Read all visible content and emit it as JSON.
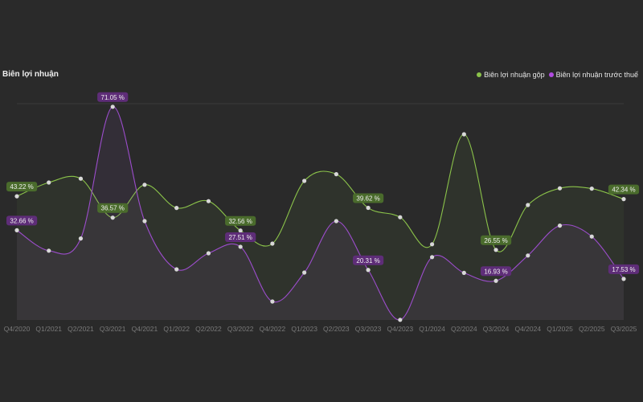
{
  "chart_data": {
    "type": "line",
    "title": "Biên lợi nhuận",
    "categories": [
      "Q4/2020",
      "Q1/2021",
      "Q2/2021",
      "Q3/2021",
      "Q4/2021",
      "Q1/2022",
      "Q2/2022",
      "Q3/2022",
      "Q4/2022",
      "Q1/2023",
      "Q2/2023",
      "Q3/2023",
      "Q4/2023",
      "Q1/2024",
      "Q2/2024",
      "Q3/2024",
      "Q4/2024",
      "Q1/2025",
      "Q2/2025",
      "Q3/2025"
    ],
    "series": [
      {
        "name": "Biên lợi nhuận gộp",
        "color": "#8bc34a",
        "label_color": "#4a6b2c",
        "values": [
          43.22,
          47.5,
          48.7,
          36.57,
          46.8,
          39.6,
          41.7,
          32.56,
          28.5,
          48.0,
          50.1,
          39.62,
          36.7,
          28.3,
          62.5,
          26.55,
          40.5,
          45.7,
          45.6,
          42.34
        ],
        "labeled_points": [
          0,
          3,
          7,
          11,
          15,
          19
        ]
      },
      {
        "name": "Biên lợi nhuận trước thuế",
        "color": "#9c4dcc",
        "label_color": "#5e2d78",
        "values": [
          32.66,
          26.3,
          30.1,
          71.05,
          35.5,
          20.5,
          25.5,
          27.51,
          10.5,
          19.5,
          35.5,
          20.31,
          4.8,
          24.3,
          19.4,
          16.93,
          24.8,
          34.1,
          30.7,
          17.53
        ],
        "labeled_points": [
          0,
          3,
          7,
          11,
          15,
          19
        ]
      }
    ],
    "value_suffix": " %",
    "ylim": [
      4.75,
      72
    ],
    "grid": "top line only",
    "legend_position": "top-right"
  }
}
